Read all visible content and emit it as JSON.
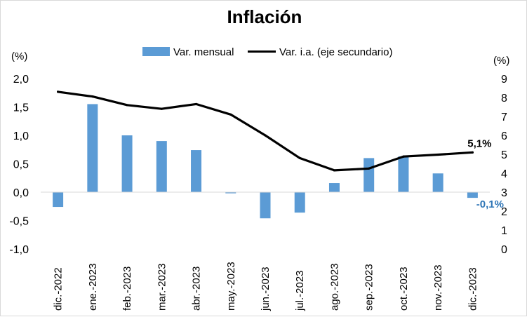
{
  "chart_data": {
    "type": "bar",
    "title": "Inflación",
    "categories": [
      "dic.-2022",
      "ene.-2023",
      "feb.-2023",
      "mar.-2023",
      "abr.-2023",
      "may.-2023",
      "jun.-2023",
      "jul.-2023",
      "ago.-2023",
      "sep.-2023",
      "oct.-2023",
      "nov.-2023",
      "dic.-2023"
    ],
    "series": [
      {
        "name": "Var. mensual",
        "type": "bar",
        "axis": "primary",
        "color": "#5b9bd5",
        "values": [
          -0.26,
          1.55,
          1.0,
          0.9,
          0.74,
          -0.02,
          -0.46,
          -0.36,
          0.16,
          0.6,
          0.63,
          0.33,
          -0.1
        ]
      },
      {
        "name": "Var. i.a. (eje secundario)",
        "type": "line",
        "axis": "secondary",
        "color": "#000000",
        "values": [
          8.3,
          8.05,
          7.6,
          7.4,
          7.65,
          7.1,
          6.0,
          4.8,
          4.15,
          4.25,
          4.88,
          4.98,
          5.1
        ]
      }
    ],
    "y_axis": {
      "unit": "(%)",
      "ylim": [
        -1.0,
        2.0
      ],
      "ticks": [
        "-1,0",
        "-0,5",
        "0,0",
        "0,5",
        "1,0",
        "1,5",
        "2,0"
      ],
      "tick_values": [
        -1.0,
        -0.5,
        0.0,
        0.5,
        1.0,
        1.5,
        2.0
      ]
    },
    "y2_axis": {
      "unit": "(%)",
      "ylim": [
        0,
        9
      ],
      "ticks": [
        "0",
        "1",
        "2",
        "3",
        "4",
        "5",
        "6",
        "7",
        "8",
        "9"
      ],
      "tick_values": [
        0,
        1,
        2,
        3,
        4,
        5,
        6,
        7,
        8,
        9
      ]
    },
    "annotations": {
      "line_last": "5,1%",
      "bar_last": "-0,1%"
    },
    "legend_position": "top",
    "grid": false
  }
}
